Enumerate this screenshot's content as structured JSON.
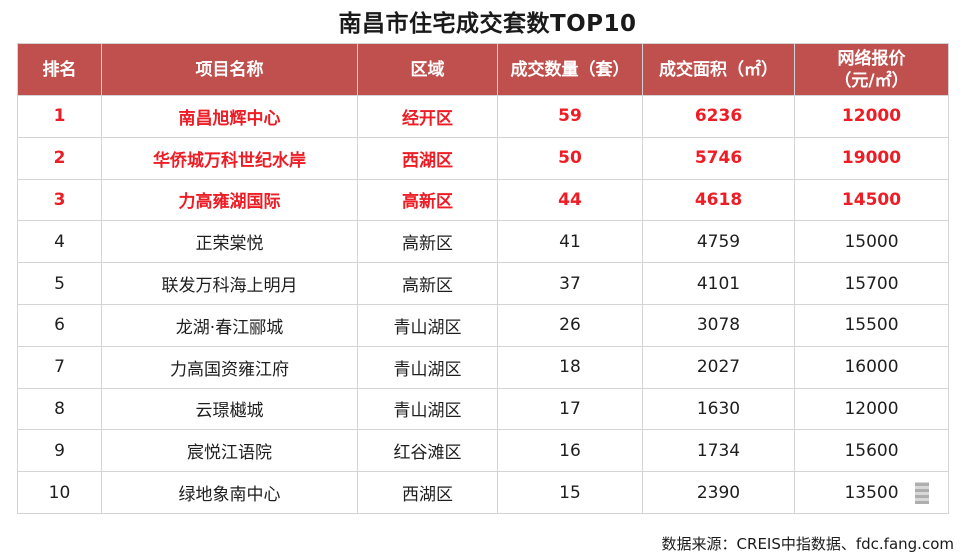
{
  "title": "南昌市住宅成交套数TOP10",
  "table": {
    "headers": [
      "排名",
      "项目名称",
      "区域",
      "成交数量（套）",
      "成交面积（㎡）",
      "网络报价\n（元/㎡）"
    ],
    "rows": [
      {
        "rank": "1",
        "name": "南昌旭辉中心",
        "area": "经开区",
        "count": "59",
        "sqm": "6236",
        "price": "12000",
        "highlight": true
      },
      {
        "rank": "2",
        "name": "华侨城万科世纪水岸",
        "area": "西湖区",
        "count": "50",
        "sqm": "5746",
        "price": "19000",
        "highlight": true
      },
      {
        "rank": "3",
        "name": "力高雍湖国际",
        "area": "高新区",
        "count": "44",
        "sqm": "4618",
        "price": "14500",
        "highlight": true
      },
      {
        "rank": "4",
        "name": "正荣棠悦",
        "area": "高新区",
        "count": "41",
        "sqm": "4759",
        "price": "15000",
        "highlight": false
      },
      {
        "rank": "5",
        "name": "联发万科海上明月",
        "area": "高新区",
        "count": "37",
        "sqm": "4101",
        "price": "15700",
        "highlight": false
      },
      {
        "rank": "6",
        "name": "龙湖·春江郦城",
        "area": "青山湖区",
        "count": "26",
        "sqm": "3078",
        "price": "15500",
        "highlight": false
      },
      {
        "rank": "7",
        "name": "力高国资雍江府",
        "area": "青山湖区",
        "count": "18",
        "sqm": "2027",
        "price": "16000",
        "highlight": false
      },
      {
        "rank": "8",
        "name": "云璟樾城",
        "area": "青山湖区",
        "count": "17",
        "sqm": "1630",
        "price": "12000",
        "highlight": false
      },
      {
        "rank": "9",
        "name": "宸悦江语院",
        "area": "红谷滩区",
        "count": "16",
        "sqm": "1734",
        "price": "15600",
        "highlight": false
      },
      {
        "rank": "10",
        "name": "绿地象南中心",
        "area": "西湖区",
        "count": "15",
        "sqm": "2390",
        "price": "13500",
        "highlight": false
      }
    ]
  },
  "source": "数据来源：CREIS中指数据、fdc.fang.com",
  "colors": {
    "header_bg": "#c0504d",
    "highlight_text": "#ee1c24",
    "body_text": "#1e1e1e",
    "border": "#d4d4d4"
  }
}
